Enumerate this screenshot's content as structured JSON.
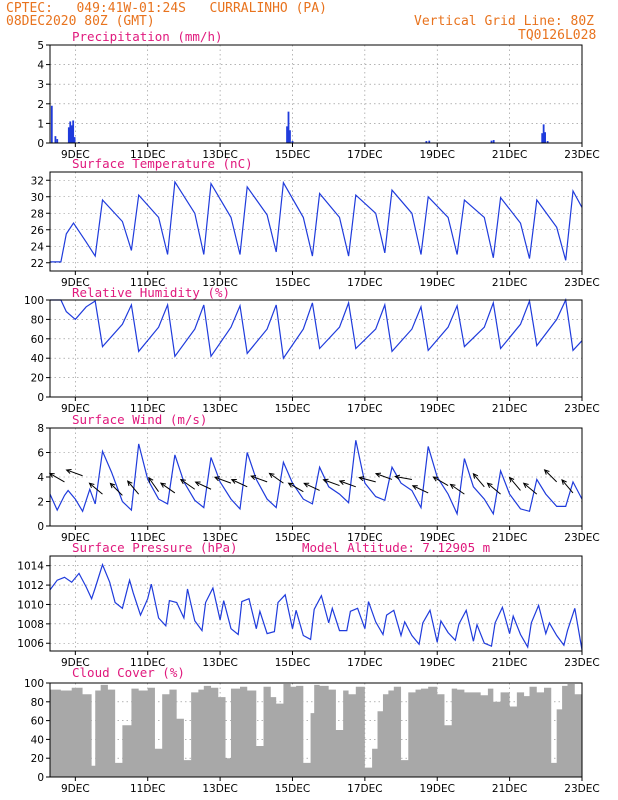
{
  "header": {
    "station_line": "CPTEC:   049:41W-01:24S   CURRALINHO (PA)",
    "date_line": "08DEC2020 80Z (GMT)",
    "grid_line_label": "Vertical Grid Line: 80Z",
    "run_code": "TQ0126L028"
  },
  "colors": {
    "header": "#e8731e",
    "title": "#e0197d",
    "series": "#1f3bdc",
    "cloud": "#a8a8a8",
    "grid": "#888888"
  },
  "chart_data": [
    {
      "id": "precip",
      "type": "bar",
      "title": "Precipitation (mm/h)",
      "ylim": [
        0,
        5
      ],
      "yticks": [
        "0",
        "1",
        "2",
        "3",
        "4",
        "5"
      ],
      "xticks": [
        "9DEC",
        "11DEC",
        "13DEC",
        "15DEC",
        "17DEC",
        "19DEC",
        "21DEC",
        "23DEC"
      ],
      "x_day_range": [
        8.3,
        23.0
      ],
      "bars": [
        [
          8.35,
          1.9
        ],
        [
          8.45,
          0.35
        ],
        [
          8.5,
          0.2
        ],
        [
          8.82,
          0.8
        ],
        [
          8.86,
          1.1
        ],
        [
          8.9,
          0.9
        ],
        [
          8.94,
          1.15
        ],
        [
          8.98,
          0.3
        ],
        [
          9.1,
          0.05
        ],
        [
          14.85,
          0.85
        ],
        [
          14.89,
          1.6
        ],
        [
          14.93,
          0.65
        ],
        [
          15.0,
          0.1
        ],
        [
          18.7,
          0.1
        ],
        [
          18.78,
          0.12
        ],
        [
          20.5,
          0.12
        ],
        [
          20.56,
          0.15
        ],
        [
          21.9,
          0.5
        ],
        [
          21.94,
          0.95
        ],
        [
          21.98,
          0.55
        ],
        [
          22.05,
          0.1
        ]
      ]
    },
    {
      "id": "temp",
      "type": "line",
      "title": "Surface Temperature (nC)",
      "ylim": [
        21,
        33
      ],
      "yticks": [
        "22",
        "24",
        "26",
        "28",
        "30",
        "32"
      ],
      "xticks": [
        "9DEC",
        "11DEC",
        "13DEC",
        "15DEC",
        "17DEC",
        "19DEC",
        "21DEC",
        "23DEC"
      ],
      "x_day_range": [
        8.3,
        23.0
      ],
      "x": [
        8.3,
        8.6,
        8.75,
        8.95,
        9.3,
        9.55,
        9.75,
        10.3,
        10.55,
        10.75,
        11.3,
        11.55,
        11.75,
        12.3,
        12.55,
        12.75,
        13.3,
        13.55,
        13.75,
        14.3,
        14.55,
        14.75,
        15.3,
        15.55,
        15.75,
        16.3,
        16.55,
        16.75,
        17.3,
        17.55,
        17.75,
        18.3,
        18.55,
        18.75,
        19.3,
        19.55,
        19.75,
        20.3,
        20.55,
        20.75,
        21.3,
        21.55,
        21.75,
        22.3,
        22.55,
        22.75,
        23.0
      ],
      "y": [
        22.1,
        22.1,
        25.5,
        26.8,
        24.5,
        22.8,
        29.6,
        27.0,
        23.5,
        30.2,
        27.5,
        23.0,
        31.8,
        28.0,
        23.0,
        31.6,
        27.5,
        23.0,
        31.2,
        27.8,
        23.3,
        31.7,
        27.5,
        22.8,
        30.4,
        27.5,
        22.8,
        30.2,
        28.0,
        23.2,
        30.8,
        28.0,
        23.0,
        30.0,
        27.5,
        23.0,
        29.6,
        27.5,
        22.6,
        29.9,
        26.8,
        22.5,
        29.6,
        26.3,
        22.3,
        30.7,
        28.7
      ]
    },
    {
      "id": "rh",
      "type": "line",
      "title": "Relative Humidity (%)",
      "ylim": [
        0,
        100
      ],
      "yticks": [
        "0",
        "20",
        "40",
        "60",
        "80",
        "100"
      ],
      "xticks": [
        "9DEC",
        "11DEC",
        "13DEC",
        "15DEC",
        "17DEC",
        "19DEC",
        "21DEC",
        "23DEC"
      ],
      "x_day_range": [
        8.3,
        23.0
      ],
      "x": [
        8.3,
        8.6,
        8.75,
        9.0,
        9.3,
        9.55,
        9.75,
        10.3,
        10.55,
        10.75,
        11.3,
        11.55,
        11.75,
        12.3,
        12.55,
        12.75,
        13.3,
        13.55,
        13.75,
        14.3,
        14.55,
        14.75,
        15.3,
        15.55,
        15.75,
        16.3,
        16.55,
        16.75,
        17.3,
        17.55,
        17.75,
        18.3,
        18.55,
        18.75,
        19.3,
        19.55,
        19.75,
        20.3,
        20.55,
        20.75,
        21.3,
        21.55,
        21.75,
        22.3,
        22.55,
        22.75,
        23.0
      ],
      "y": [
        100,
        100,
        88,
        80,
        93,
        99,
        52,
        75,
        95,
        47,
        72,
        95,
        42,
        70,
        95,
        42,
        72,
        94,
        45,
        70,
        95,
        40,
        70,
        97,
        50,
        72,
        97,
        50,
        70,
        95,
        47,
        70,
        93,
        48,
        72,
        94,
        52,
        72,
        97,
        50,
        75,
        99,
        53,
        80,
        100,
        48,
        58
      ]
    },
    {
      "id": "wind",
      "type": "line",
      "title": "Surface Wind (m/s)",
      "ylim": [
        0,
        8
      ],
      "yticks": [
        "0",
        "2",
        "4",
        "6",
        "8"
      ],
      "xticks": [
        "9DEC",
        "11DEC",
        "13DEC",
        "15DEC",
        "17DEC",
        "19DEC",
        "21DEC",
        "23DEC"
      ],
      "x_day_range": [
        8.3,
        23.0
      ],
      "x": [
        8.3,
        8.5,
        8.7,
        8.8,
        9.0,
        9.2,
        9.4,
        9.55,
        9.75,
        10.0,
        10.3,
        10.55,
        10.75,
        11.0,
        11.3,
        11.55,
        11.75,
        12.0,
        12.3,
        12.55,
        12.75,
        13.0,
        13.3,
        13.55,
        13.75,
        14.0,
        14.3,
        14.55,
        14.75,
        15.0,
        15.3,
        15.55,
        15.75,
        16.0,
        16.3,
        16.55,
        16.75,
        17.0,
        17.3,
        17.55,
        17.75,
        18.0,
        18.3,
        18.55,
        18.75,
        19.0,
        19.3,
        19.55,
        19.75,
        20.0,
        20.3,
        20.55,
        20.75,
        21.0,
        21.3,
        21.55,
        21.75,
        22.0,
        22.3,
        22.55,
        22.75,
        23.0
      ],
      "y": [
        2.6,
        1.3,
        2.5,
        2.9,
        2.2,
        1.2,
        3.0,
        1.8,
        6.1,
        4.4,
        2.0,
        1.3,
        6.7,
        3.8,
        2.2,
        1.8,
        5.8,
        3.6,
        2.1,
        1.5,
        5.6,
        3.6,
        2.2,
        1.4,
        6.0,
        3.8,
        2.2,
        1.5,
        5.2,
        3.5,
        2.2,
        1.8,
        4.8,
        3.2,
        2.6,
        1.9,
        7.0,
        3.5,
        2.4,
        2.1,
        4.8,
        3.5,
        2.9,
        1.5,
        6.5,
        4.0,
        2.6,
        1.0,
        5.5,
        3.2,
        2.2,
        1.0,
        4.5,
        2.6,
        1.4,
        1.2,
        3.8,
        2.6,
        1.6,
        1.6,
        3.6,
        2.2
      ],
      "arrow_days": [
        8.7,
        9.2,
        9.75,
        10.3,
        10.75,
        11.3,
        11.75,
        12.3,
        12.75,
        13.3,
        13.75,
        14.3,
        14.75,
        15.3,
        15.75,
        16.3,
        16.75,
        17.3,
        17.75,
        18.3,
        18.75,
        19.3,
        19.75,
        20.3,
        20.75,
        21.3,
        21.75,
        22.3,
        22.75
      ],
      "arrow_speed": [
        3.6,
        4.1,
        2.6,
        2.5,
        2.6,
        2.8,
        2.7,
        3.0,
        3.0,
        3.5,
        3.2,
        3.6,
        3.5,
        2.8,
        2.9,
        3.3,
        3.2,
        3.6,
        3.8,
        3.8,
        2.7,
        3.3,
        2.6,
        3.2,
        2.6,
        2.9,
        2.6,
        3.6,
        2.7
      ],
      "arrow_dir_deg": [
        210,
        200,
        220,
        225,
        230,
        235,
        215,
        215,
        205,
        200,
        205,
        200,
        215,
        210,
        205,
        200,
        200,
        195,
        200,
        190,
        205,
        210,
        215,
        230,
        220,
        230,
        220,
        225,
        230
      ]
    },
    {
      "id": "pressure",
      "type": "line",
      "title": "Surface Pressure (hPa)",
      "model_altitude": "Model Altitude: 7.12905 m",
      "ylim": [
        1005.2,
        1015.0
      ],
      "yticks": [
        "1006",
        "1008",
        "1010",
        "1012",
        "1014"
      ],
      "xticks": [
        "9DEC",
        "11DEC",
        "13DEC",
        "15DEC",
        "17DEC",
        "19DEC",
        "21DEC",
        "23DEC"
      ],
      "x_day_range": [
        8.3,
        23.0
      ],
      "x": [
        8.3,
        8.5,
        8.7,
        8.9,
        9.1,
        9.3,
        9.45,
        9.55,
        9.75,
        9.95,
        10.1,
        10.3,
        10.5,
        10.6,
        10.8,
        11.0,
        11.1,
        11.3,
        11.5,
        11.6,
        11.8,
        12.0,
        12.1,
        12.3,
        12.5,
        12.6,
        12.8,
        13.0,
        13.1,
        13.3,
        13.5,
        13.6,
        13.8,
        14.0,
        14.1,
        14.3,
        14.5,
        14.6,
        14.8,
        15.0,
        15.1,
        15.3,
        15.5,
        15.6,
        15.8,
        16.0,
        16.1,
        16.3,
        16.5,
        16.6,
        16.8,
        17.0,
        17.1,
        17.3,
        17.5,
        17.6,
        17.8,
        18.0,
        18.1,
        18.3,
        18.5,
        18.6,
        18.8,
        19.0,
        19.1,
        19.3,
        19.5,
        19.6,
        19.8,
        20.0,
        20.1,
        20.3,
        20.5,
        20.6,
        20.8,
        21.0,
        21.1,
        21.3,
        21.5,
        21.6,
        21.8,
        22.0,
        22.1,
        22.3,
        22.5,
        22.6,
        22.8,
        23.0
      ],
      "y": [
        1011.5,
        1012.5,
        1012.8,
        1012.3,
        1013.2,
        1011.8,
        1010.6,
        1011.7,
        1014.1,
        1012.3,
        1010.2,
        1009.6,
        1012.5,
        1011.2,
        1008.9,
        1010.6,
        1012.1,
        1008.6,
        1007.8,
        1010.4,
        1010.2,
        1008.6,
        1011.6,
        1008.3,
        1007.3,
        1010.2,
        1011.7,
        1008.4,
        1010.4,
        1007.5,
        1006.9,
        1010.3,
        1010.6,
        1007.5,
        1009.3,
        1007.0,
        1007.2,
        1010.2,
        1011.0,
        1007.5,
        1009.4,
        1006.8,
        1006.4,
        1009.5,
        1010.9,
        1008.1,
        1009.6,
        1007.3,
        1007.3,
        1009.3,
        1009.6,
        1007.5,
        1010.3,
        1008.2,
        1006.9,
        1008.9,
        1009.4,
        1006.8,
        1008.2,
        1006.8,
        1005.9,
        1008.1,
        1009.4,
        1006.1,
        1008.3,
        1007.1,
        1006.3,
        1008.0,
        1009.4,
        1006.2,
        1007.9,
        1006.0,
        1005.7,
        1008.1,
        1009.7,
        1007.0,
        1008.8,
        1006.9,
        1005.6,
        1008.1,
        1009.9,
        1007.0,
        1008.1,
        1006.8,
        1005.8,
        1007.3,
        1009.6,
        1005.3
      ]
    },
    {
      "id": "cloud",
      "type": "bar",
      "title": "Cloud Cover (%)",
      "ylim": [
        0,
        100
      ],
      "yticks": [
        "0",
        "20",
        "40",
        "60",
        "80",
        "100"
      ],
      "xticks": [
        "9DEC",
        "11DEC",
        "13DEC",
        "15DEC",
        "17DEC",
        "19DEC",
        "21DEC",
        "23DEC"
      ],
      "x_day_range": [
        8.3,
        23.0
      ],
      "x": [
        8.3,
        8.6,
        8.9,
        9.2,
        9.45,
        9.55,
        9.7,
        9.9,
        10.1,
        10.3,
        10.55,
        10.75,
        11.0,
        11.2,
        11.4,
        11.6,
        11.8,
        12.0,
        12.2,
        12.4,
        12.55,
        12.75,
        12.95,
        13.15,
        13.3,
        13.55,
        13.75,
        14.0,
        14.2,
        14.4,
        14.55,
        14.75,
        14.95,
        15.1,
        15.3,
        15.5,
        15.6,
        15.75,
        16.0,
        16.2,
        16.4,
        16.55,
        16.75,
        17.0,
        17.2,
        17.35,
        17.5,
        17.65,
        17.8,
        18.0,
        18.2,
        18.4,
        18.55,
        18.75,
        19.0,
        19.2,
        19.4,
        19.55,
        19.75,
        20.0,
        20.2,
        20.4,
        20.55,
        20.75,
        21.0,
        21.2,
        21.4,
        21.55,
        21.75,
        21.95,
        22.15,
        22.3,
        22.45,
        22.6,
        22.8,
        23.0
      ],
      "y": [
        93,
        92,
        95,
        88,
        12,
        92,
        98,
        93,
        15,
        55,
        94,
        92,
        95,
        30,
        88,
        93,
        62,
        18,
        90,
        93,
        97,
        95,
        85,
        20,
        94,
        96,
        92,
        33,
        96,
        85,
        78,
        99,
        96,
        97,
        15,
        68,
        98,
        97,
        93,
        50,
        92,
        88,
        96,
        10,
        30,
        70,
        88,
        92,
        96,
        18,
        90,
        93,
        94,
        96,
        88,
        55,
        94,
        93,
        90,
        90,
        87,
        94,
        80,
        90,
        75,
        90,
        86,
        96,
        90,
        95,
        15,
        72,
        97,
        99,
        88,
        97
      ]
    }
  ]
}
